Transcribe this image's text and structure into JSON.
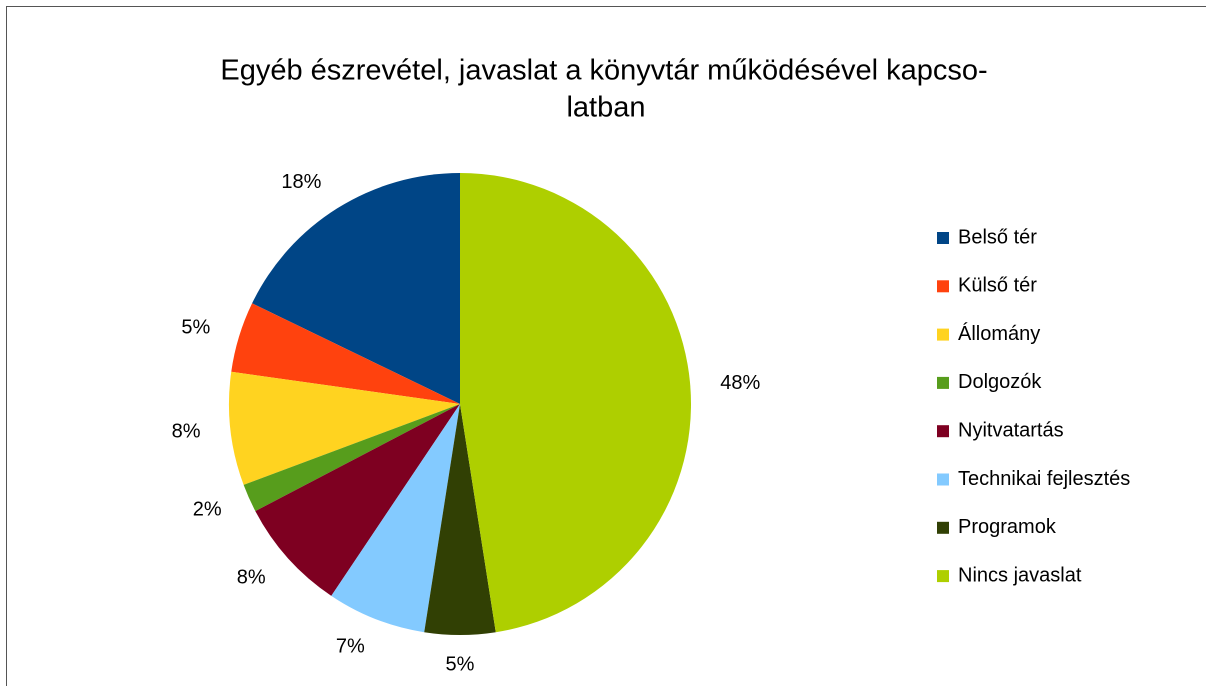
{
  "chart_data": {
    "type": "pie",
    "title": [
      "Egyéb észrevétel, javaslat a könyvtár működésével kapcso-",
      "latban"
    ],
    "categories": [
      "Belső tér",
      "Külső tér",
      "Állomány",
      "Dolgozók",
      "Nyitvatartás",
      "Technikai fejlesztés",
      "Programok",
      "Nincs javaslat"
    ],
    "values": [
      18,
      5,
      8,
      2,
      8,
      7,
      5,
      48
    ],
    "value_labels": [
      "18%",
      "5%",
      "8%",
      "2%",
      "8%",
      "7%",
      "5%",
      "48%"
    ],
    "colors": [
      "#004586",
      "#ff420e",
      "#ffd320",
      "#579d1c",
      "#7e0021",
      "#83caff",
      "#314004",
      "#aecf00"
    ],
    "legend": "right"
  }
}
